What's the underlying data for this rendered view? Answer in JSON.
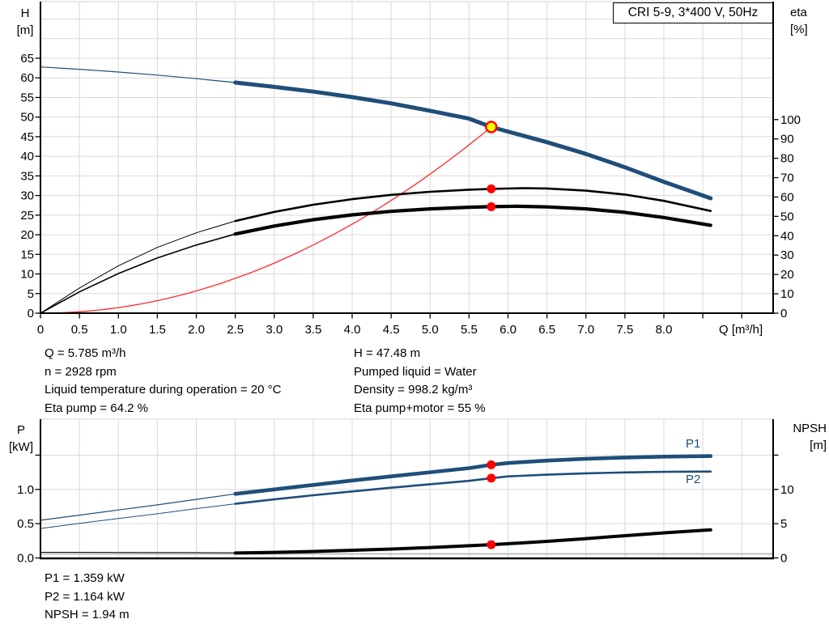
{
  "legend": {
    "label": "CRI 5-9, 3*400 V, 50Hz"
  },
  "colors": {
    "curve_blue": "#1F4E79",
    "curve_black": "#000000",
    "system_red": "#FF2A2A",
    "dot_red": "#FF0000",
    "duty_yellow": "#FFFF00",
    "grid_gray": "#D9D9D9",
    "baseline_gray": "#C0C0C0"
  },
  "axis_units": {
    "top_left": [
      "H",
      "[m]"
    ],
    "top_right": [
      "eta",
      "[%]"
    ],
    "bottom_left": [
      "P",
      "[kW]"
    ],
    "bottom_right": [
      "NPSH",
      "[m]"
    ],
    "x": "Q [m³/h]"
  },
  "curve_labels": {
    "p1": "P1",
    "p2": "P2"
  },
  "info_top": {
    "left": [
      "Q = 5.785 m³/h",
      "n = 2928 rpm",
      "Liquid temperature during operation = 20 °C",
      "Eta pump = 64.2 %"
    ],
    "right": [
      "H = 47.48 m",
      "Pumped liquid = Water",
      "Density = 998.2 kg/m³",
      "Eta pump+motor = 55 %"
    ]
  },
  "info_bottom": [
    "P1 = 1.359 kW",
    "P2 = 1.164 kW",
    "NPSH = 1.94 m"
  ],
  "chart_data": [
    {
      "type": "line",
      "title": "CRI 5-9, 3*400 V, 50Hz",
      "xlabel": "Q [m³/h]",
      "x": {
        "min": 0,
        "max": 9.4,
        "ticks": [
          0,
          0.5,
          1,
          1.5,
          2,
          2.5,
          3,
          3.5,
          4,
          4.5,
          5,
          5.5,
          6,
          6.5,
          7,
          7.5,
          8,
          8.5,
          9
        ],
        "labels": [
          "0",
          "0.5",
          "1.0",
          "1.5",
          "2.0",
          "2.5",
          "3.0",
          "3.5",
          "4.0",
          "4.5",
          "5.0",
          "5.5",
          "6.0",
          "6.5",
          "7.0",
          "7.5",
          "8.0"
        ],
        "show_ticks": true
      },
      "yleft": {
        "label": "H [m]",
        "min": 0,
        "max": 79.4,
        "ticks": [
          0,
          5,
          10,
          15,
          20,
          25,
          30,
          35,
          40,
          45,
          50,
          55,
          60,
          65
        ],
        "labels": [
          "0",
          "5",
          "10",
          "15",
          "20",
          "25",
          "30",
          "35",
          "40",
          "45",
          "50",
          "55",
          "60",
          "65"
        ],
        "grid_step": 5,
        "grid_max": 75
      },
      "yright": {
        "label": "eta [%]",
        "min": 0,
        "max": 100,
        "ticks": [
          0,
          10,
          20,
          30,
          40,
          50,
          60,
          70,
          80,
          90,
          100
        ],
        "labels": [
          "0",
          "10",
          "20",
          "30",
          "40",
          "50",
          "60",
          "70",
          "80",
          "90",
          "100"
        ]
      },
      "series": [
        {
          "name": "system-curve",
          "axis": "left",
          "color": "#FF2A2A",
          "width": 1.3,
          "quadratic": {
            "q_end": 5.785,
            "h_end": 47.48
          }
        },
        {
          "name": "eta-pump-curve",
          "axis": "right",
          "color": "#000000",
          "thin_width": 1,
          "width": 2.6,
          "thin": [
            [
              0,
              0
            ],
            [
              0.5,
              13
            ],
            [
              1,
              24.5
            ],
            [
              1.5,
              34
            ],
            [
              2,
              41.5
            ],
            [
              2.5,
              47.6
            ]
          ],
          "points": [
            [
              2.5,
              47.6
            ],
            [
              3,
              52.3
            ],
            [
              3.5,
              56
            ],
            [
              4,
              58.9
            ],
            [
              4.5,
              61.1
            ],
            [
              5,
              62.7
            ],
            [
              5.5,
              63.8
            ],
            [
              5.785,
              64.2
            ],
            [
              6.2,
              64.6
            ],
            [
              6.5,
              64.4
            ],
            [
              7,
              63.3
            ],
            [
              7.5,
              61.3
            ],
            [
              8,
              58
            ],
            [
              8.6,
              52.8
            ]
          ]
        },
        {
          "name": "eta-pump-motor-curve",
          "axis": "right",
          "color": "#000000",
          "thin_width": 1.6,
          "width": 4.2,
          "thin": [
            [
              0,
              0
            ],
            [
              0.5,
              11
            ],
            [
              1,
              20.5
            ],
            [
              1.5,
              28.5
            ],
            [
              2,
              35.2
            ],
            [
              2.5,
              40.9
            ]
          ],
          "points": [
            [
              2.5,
              40.9
            ],
            [
              3,
              45
            ],
            [
              3.5,
              48.3
            ],
            [
              4,
              50.8
            ],
            [
              4.5,
              52.6
            ],
            [
              5,
              53.9
            ],
            [
              5.5,
              54.7
            ],
            [
              5.785,
              55
            ],
            [
              6.1,
              55.2
            ],
            [
              6.5,
              54.9
            ],
            [
              7,
              53.9
            ],
            [
              7.5,
              52.1
            ],
            [
              8,
              49.4
            ],
            [
              8.6,
              45.4
            ]
          ]
        },
        {
          "name": "pump-curve",
          "axis": "left",
          "color": "#1F4E79",
          "thin_width": 1.2,
          "width": 5,
          "thin": [
            [
              0,
              62.8
            ],
            [
              0.5,
              62.2
            ],
            [
              1,
              61.5
            ],
            [
              1.5,
              60.7
            ],
            [
              2,
              59.8
            ],
            [
              2.5,
              58.8
            ]
          ],
          "points": [
            [
              2.5,
              58.8
            ],
            [
              3,
              57.7
            ],
            [
              3.5,
              56.5
            ],
            [
              4,
              55.1
            ],
            [
              4.5,
              53.5
            ],
            [
              5,
              51.6
            ],
            [
              5.5,
              49.6
            ],
            [
              5.785,
              47.48
            ],
            [
              6,
              46.3
            ],
            [
              6.5,
              43.6
            ],
            [
              7,
              40.6
            ],
            [
              7.5,
              37.2
            ],
            [
              8,
              33.5
            ],
            [
              8.6,
              29.3
            ]
          ]
        }
      ],
      "markers": [
        {
          "type": "dot",
          "q": 5.785,
          "value": 64.2,
          "axis": "right",
          "fill": "#FF0000",
          "r": 5.5
        },
        {
          "type": "dot",
          "q": 5.785,
          "value": 55,
          "axis": "right",
          "fill": "#FF0000",
          "r": 5.5
        },
        {
          "type": "duty-point",
          "q": 5.785,
          "value": 47.48,
          "axis": "left",
          "fill": "#FFFF00",
          "stroke": "#FF0000",
          "r": 6.5
        }
      ]
    },
    {
      "type": "line",
      "title": "Power and NPSH curves",
      "x": {
        "min": 0,
        "max": 9.4,
        "ticks": [],
        "labels": [],
        "show_ticks": false
      },
      "yleft": {
        "label": "P [kW]",
        "min": 0,
        "max": 2.02,
        "ticks": [
          0,
          0.5,
          1,
          1.5
        ],
        "labels": [
          "0.0",
          "0.5",
          "1.0"
        ],
        "grid_step": 0.5,
        "grid_max": 1.5
      },
      "yright": {
        "label": "NPSH [m]",
        "min": 0,
        "max": 20.2,
        "ticks": [
          0,
          5,
          10,
          15
        ],
        "labels": [
          "0",
          "5",
          "10"
        ]
      },
      "gray_line_npsh": 0.59,
      "series": [
        {
          "name": "npsh-curve",
          "axis": "right",
          "color": "#000000",
          "thin_width": 1,
          "width": 4,
          "thin": [
            [
              0,
              0.83
            ],
            [
              1,
              0.8
            ],
            [
              2,
              0.78
            ],
            [
              2.5,
              0.75
            ]
          ],
          "points": [
            [
              2.5,
              0.72
            ],
            [
              3,
              0.82
            ],
            [
              3.5,
              0.95
            ],
            [
              4,
              1.12
            ],
            [
              4.5,
              1.3
            ],
            [
              5,
              1.52
            ],
            [
              5.5,
              1.78
            ],
            [
              5.785,
              1.94
            ],
            [
              6,
              2.08
            ],
            [
              6.5,
              2.42
            ],
            [
              7,
              2.82
            ],
            [
              7.5,
              3.25
            ],
            [
              8,
              3.66
            ],
            [
              8.6,
              4.1
            ]
          ]
        },
        {
          "name": "p2-curve",
          "axis": "left",
          "color": "#1F4E79",
          "thin_width": 1,
          "width": 2.6,
          "thin": [
            [
              0,
              0.43
            ],
            [
              0.5,
              0.505
            ],
            [
              1,
              0.575
            ],
            [
              1.5,
              0.645
            ],
            [
              2,
              0.72
            ],
            [
              2.5,
              0.79
            ]
          ],
          "points": [
            [
              2.5,
              0.79
            ],
            [
              3,
              0.855
            ],
            [
              3.5,
              0.915
            ],
            [
              4,
              0.97
            ],
            [
              4.5,
              1.025
            ],
            [
              5,
              1.075
            ],
            [
              5.5,
              1.125
            ],
            [
              5.785,
              1.164
            ],
            [
              6,
              1.19
            ],
            [
              6.5,
              1.215
            ],
            [
              7,
              1.235
            ],
            [
              7.5,
              1.248
            ],
            [
              8,
              1.256
            ],
            [
              8.6,
              1.261
            ]
          ]
        },
        {
          "name": "p1-curve",
          "axis": "left",
          "color": "#1F4E79",
          "thin_width": 1.2,
          "width": 4.6,
          "thin": [
            [
              0,
              0.55
            ],
            [
              0.5,
              0.625
            ],
            [
              1,
              0.7
            ],
            [
              1.5,
              0.775
            ],
            [
              2,
              0.855
            ],
            [
              2.5,
              0.935
            ]
          ],
          "points": [
            [
              2.5,
              0.935
            ],
            [
              3,
              1.0
            ],
            [
              3.5,
              1.065
            ],
            [
              4,
              1.13
            ],
            [
              4.5,
              1.19
            ],
            [
              5,
              1.25
            ],
            [
              5.5,
              1.31
            ],
            [
              5.785,
              1.359
            ],
            [
              6,
              1.385
            ],
            [
              6.5,
              1.42
            ],
            [
              7,
              1.447
            ],
            [
              7.5,
              1.465
            ],
            [
              8,
              1.478
            ],
            [
              8.6,
              1.487
            ]
          ]
        }
      ],
      "markers": [
        {
          "type": "dot",
          "q": 5.785,
          "value": 1.359,
          "axis": "left",
          "fill": "#FF0000",
          "r": 5.5
        },
        {
          "type": "dot",
          "q": 5.785,
          "value": 1.164,
          "axis": "left",
          "fill": "#FF0000",
          "r": 5.5
        },
        {
          "type": "dot",
          "q": 5.785,
          "value": 1.94,
          "axis": "right",
          "fill": "#FF0000",
          "r": 5.5
        }
      ]
    }
  ]
}
